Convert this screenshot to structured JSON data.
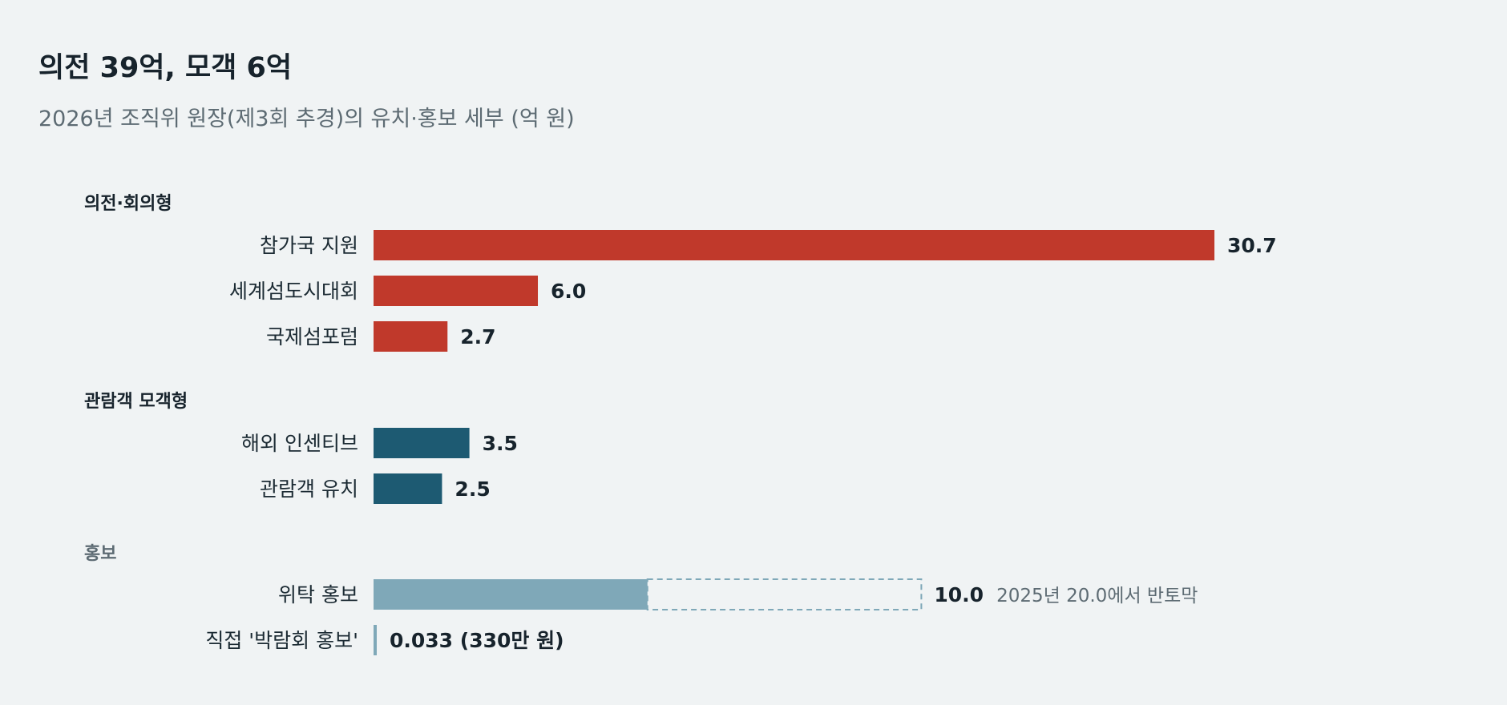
{
  "chart_data": {
    "type": "bar",
    "orientation": "horizontal",
    "title": "의전 39억, 모객 6억",
    "subtitle": "2026년 조직위 원장(제3회 추경)의 유치·홍보 세부 (억 원)",
    "colors": {
      "protocol": "#c0392b",
      "visitor": "#1d5a72",
      "promo": "#7fa8b8",
      "promo_group_label": "#5d6b73",
      "ghost_outline": "#7fa8b8"
    },
    "groups": [
      {
        "name": "의전·회의형",
        "color_key": "protocol",
        "items": [
          {
            "label": "참가국 지원",
            "value": 30.7,
            "value_label": "30.7"
          },
          {
            "label": "세계섬도시대회",
            "value": 6.0,
            "value_label": "6.0"
          },
          {
            "label": "국제섬포럼",
            "value": 2.7,
            "value_label": "2.7"
          }
        ]
      },
      {
        "name": "관람객 모객형",
        "color_key": "visitor",
        "items": [
          {
            "label": "해외 인센티브",
            "value": 3.5,
            "value_label": "3.5"
          },
          {
            "label": "관람객 유치",
            "value": 2.5,
            "value_label": "2.5"
          }
        ]
      },
      {
        "name": "홍보",
        "color_key": "promo",
        "muted": true,
        "items": [
          {
            "label": "위탁 홍보",
            "value": 10.0,
            "value_label": "10.0",
            "previous_value": 20.0,
            "note": "2025년 20.0에서 반토막"
          },
          {
            "label": "직접 '박람회 홍보'",
            "value": 0.033,
            "value_label": "0.033 (330만 원)"
          }
        ]
      }
    ],
    "xlim": [
      0,
      30.7
    ],
    "grid": false,
    "legend": "none"
  }
}
